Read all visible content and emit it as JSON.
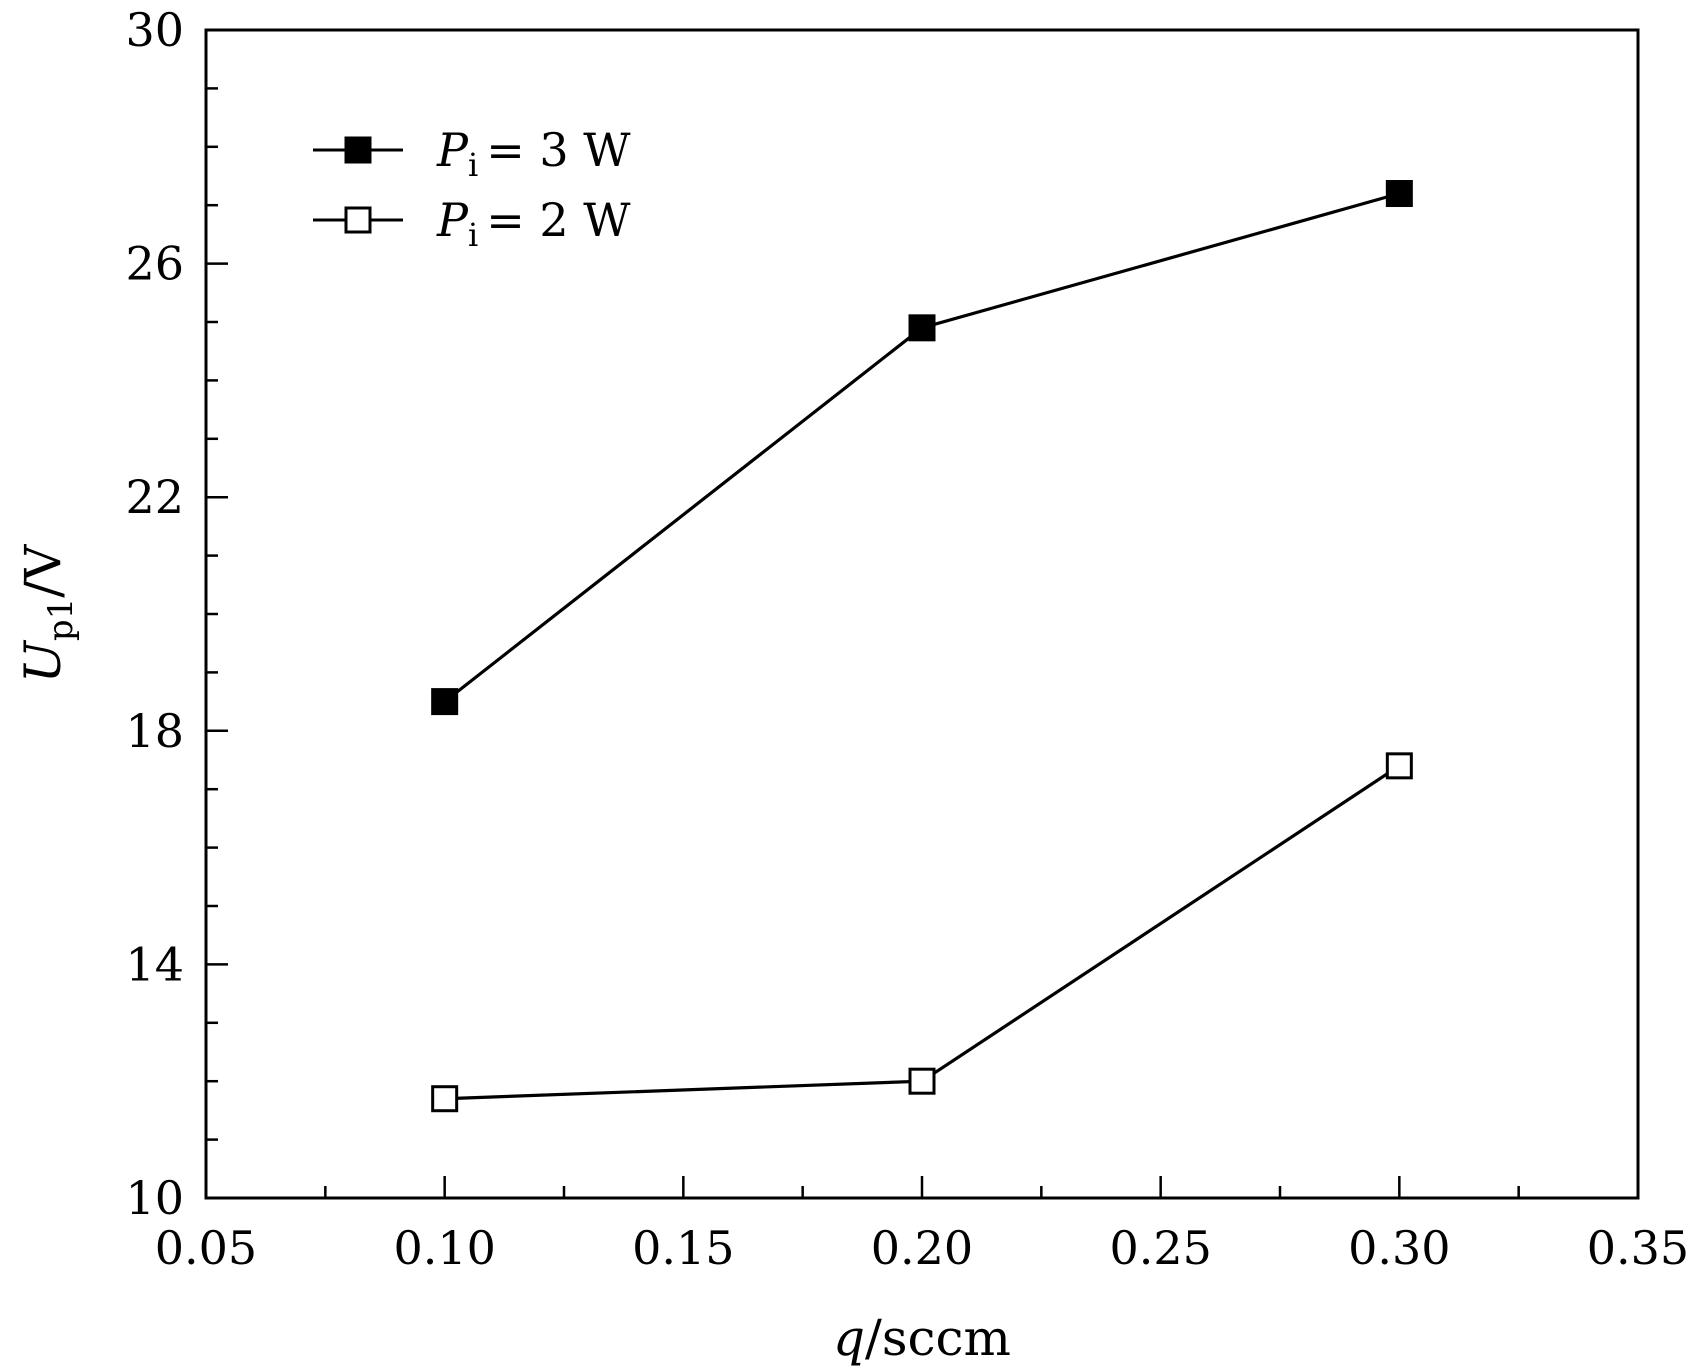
{
  "chart_data": {
    "type": "line",
    "x_label_var": "q",
    "x_label_unit": "/sccm",
    "y_label_var": "U",
    "y_label_sub": "p1",
    "y_label_unit": "/V",
    "xlim": [
      0.05,
      0.35
    ],
    "ylim": [
      10,
      30
    ],
    "x_ticks": [
      "0.05",
      "0.10",
      "0.15",
      "0.20",
      "0.25",
      "0.30",
      "0.35"
    ],
    "y_ticks": [
      "10",
      "14",
      "18",
      "22",
      "26",
      "30"
    ],
    "x_minor_step": 0.025,
    "y_minor_step": 1,
    "grid": false,
    "legend_position": "top-left",
    "series": [
      {
        "name": "P_i = 3 W",
        "legend_var": "P",
        "legend_sub": "i",
        "legend_rest": "= 3 W",
        "marker": "filled-square",
        "x": [
          0.1,
          0.2,
          0.3
        ],
        "y": [
          18.5,
          24.9,
          27.2
        ]
      },
      {
        "name": "P_i = 2 W",
        "legend_var": "P",
        "legend_sub": "i",
        "legend_rest": "= 2 W",
        "marker": "open-square",
        "x": [
          0.1,
          0.2,
          0.3
        ],
        "y": [
          11.7,
          12.0,
          17.4
        ]
      }
    ]
  }
}
